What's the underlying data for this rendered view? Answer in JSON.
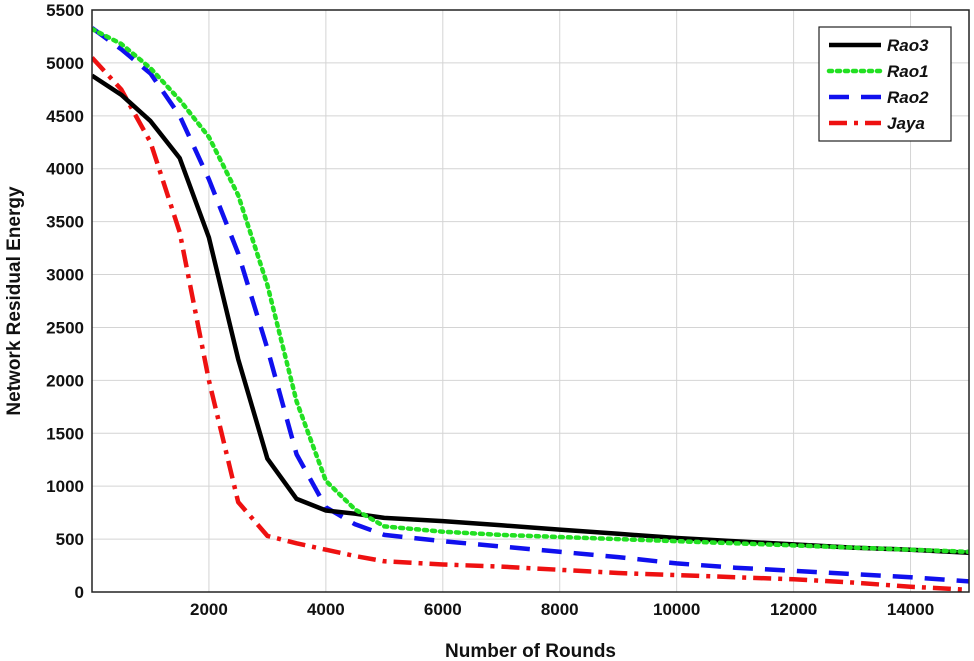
{
  "chart_data": {
    "type": "line",
    "title": "",
    "xlabel": "Number of Rounds",
    "ylabel": "Network Residual Energy",
    "xlim": [
      0,
      15000
    ],
    "ylim": [
      0,
      5500
    ],
    "xticks": [
      2000,
      4000,
      6000,
      8000,
      10000,
      12000,
      14000
    ],
    "yticks": [
      0,
      500,
      1000,
      1500,
      2000,
      2500,
      3000,
      3500,
      4000,
      4500,
      5000,
      5500
    ],
    "grid": true,
    "legend_position": "top-right",
    "series": [
      {
        "name": "Rao3",
        "color": "#000000",
        "dash": "solid",
        "points": [
          [
            0,
            4880
          ],
          [
            500,
            4700
          ],
          [
            1000,
            4450
          ],
          [
            1500,
            4100
          ],
          [
            2000,
            3350
          ],
          [
            2500,
            2200
          ],
          [
            3000,
            1260
          ],
          [
            3500,
            880
          ],
          [
            4000,
            770
          ],
          [
            4500,
            740
          ],
          [
            5000,
            700
          ],
          [
            6000,
            670
          ],
          [
            7000,
            630
          ],
          [
            8000,
            590
          ],
          [
            9000,
            550
          ],
          [
            10000,
            510
          ],
          [
            11000,
            480
          ],
          [
            12000,
            450
          ],
          [
            13000,
            420
          ],
          [
            14000,
            400
          ],
          [
            15000,
            370
          ]
        ]
      },
      {
        "name": "Rao1",
        "color": "#22e022",
        "dash": "dotted",
        "points": [
          [
            0,
            5320
          ],
          [
            500,
            5180
          ],
          [
            1000,
            4950
          ],
          [
            1500,
            4650
          ],
          [
            2000,
            4300
          ],
          [
            2500,
            3750
          ],
          [
            3000,
            2900
          ],
          [
            3500,
            1800
          ],
          [
            4000,
            1050
          ],
          [
            4500,
            780
          ],
          [
            5000,
            620
          ],
          [
            6000,
            570
          ],
          [
            7000,
            540
          ],
          [
            8000,
            520
          ],
          [
            9000,
            500
          ],
          [
            10000,
            480
          ],
          [
            11000,
            460
          ],
          [
            12000,
            440
          ],
          [
            13000,
            420
          ],
          [
            14000,
            400
          ],
          [
            15000,
            380
          ]
        ]
      },
      {
        "name": "Rao2",
        "color": "#1010ee",
        "dash": "dashed",
        "points": [
          [
            0,
            5330
          ],
          [
            500,
            5130
          ],
          [
            1000,
            4900
          ],
          [
            1500,
            4500
          ],
          [
            2000,
            3900
          ],
          [
            2500,
            3200
          ],
          [
            3000,
            2300
          ],
          [
            3500,
            1300
          ],
          [
            4000,
            800
          ],
          [
            4500,
            640
          ],
          [
            5000,
            540
          ],
          [
            6000,
            480
          ],
          [
            7000,
            430
          ],
          [
            8000,
            380
          ],
          [
            9000,
            330
          ],
          [
            10000,
            270
          ],
          [
            11000,
            230
          ],
          [
            12000,
            200
          ],
          [
            13000,
            170
          ],
          [
            14000,
            140
          ],
          [
            15000,
            100
          ]
        ]
      },
      {
        "name": "Jaya",
        "color": "#ee1111",
        "dash": "dashdot",
        "points": [
          [
            0,
            5050
          ],
          [
            500,
            4750
          ],
          [
            1000,
            4250
          ],
          [
            1500,
            3400
          ],
          [
            2000,
            2000
          ],
          [
            2500,
            850
          ],
          [
            3000,
            530
          ],
          [
            3500,
            460
          ],
          [
            4000,
            400
          ],
          [
            4500,
            340
          ],
          [
            5000,
            290
          ],
          [
            6000,
            260
          ],
          [
            7000,
            240
          ],
          [
            8000,
            210
          ],
          [
            9000,
            180
          ],
          [
            10000,
            160
          ],
          [
            11000,
            140
          ],
          [
            12000,
            120
          ],
          [
            13000,
            90
          ],
          [
            14000,
            50
          ],
          [
            15000,
            20
          ]
        ]
      }
    ]
  }
}
